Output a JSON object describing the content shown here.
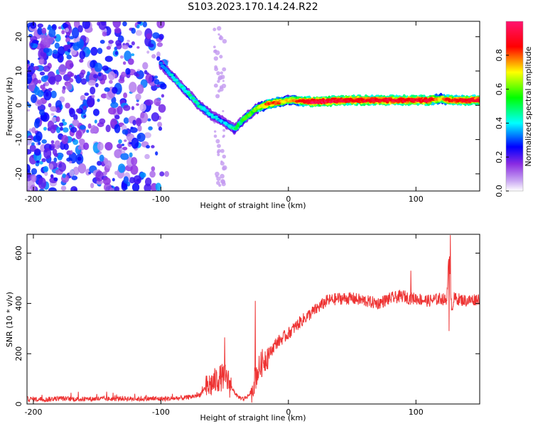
{
  "figure": {
    "title": "S103.2023.170.14.24.R22"
  },
  "chart_data": [
    {
      "type": "heatmap",
      "xlabel": "Height of straight line (km)",
      "ylabel": "Frequency (Hz)",
      "xlim": [
        -205,
        150
      ],
      "ylim": [
        -25,
        24.5
      ],
      "xticks": [
        -200,
        -100,
        0,
        100
      ],
      "yticks": [
        -20,
        -10,
        0,
        10,
        20
      ],
      "colorbar": {
        "label": "Normalized spectral amplitude",
        "range": [
          0,
          1
        ],
        "ticks": [
          0.0,
          0.2,
          0.4,
          0.6,
          0.8
        ],
        "colormap": [
          "#ffffff",
          "#8a2be2",
          "#0000ff",
          "#00ffff",
          "#00ff00",
          "#ffff00",
          "#ff0000",
          "#ff1493"
        ]
      },
      "ridge": {
        "x": [
          -100,
          -90,
          -80,
          -70,
          -60,
          -50,
          -42,
          -35,
          -25,
          -15,
          -5,
          0,
          20,
          50,
          80,
          110,
          120,
          125,
          150
        ],
        "y": [
          12,
          8,
          4,
          0,
          -3,
          -5,
          -7,
          -4,
          -1,
          0.5,
          1,
          1.5,
          1,
          1.5,
          1.5,
          1.5,
          2,
          1.5,
          1.5
        ],
        "amplitude": [
          0.35,
          0.4,
          0.45,
          0.45,
          0.4,
          0.35,
          0.45,
          0.55,
          0.6,
          0.85,
          0.75,
          0.7,
          0.95,
          0.9,
          0.9,
          0.9,
          0.7,
          0.85,
          0.9
        ]
      },
      "noise_region": {
        "x": [
          -205,
          -95
        ],
        "amplitude_max": 0.3
      },
      "grid": false
    },
    {
      "type": "line",
      "xlabel": "Height of straight line (km)",
      "ylabel": "SNR (10 * v/v)",
      "xlim": [
        -205,
        150
      ],
      "ylim": [
        0,
        675
      ],
      "xticks": [
        -200,
        -100,
        0,
        100
      ],
      "yticks": [
        0,
        200,
        400,
        600
      ],
      "color": "#ee3333",
      "series": [
        {
          "x": [
            -205,
            -190,
            -180,
            -170,
            -160,
            -150,
            -140,
            -130,
            -120,
            -110,
            -100,
            -90,
            -80,
            -70,
            -65,
            -60,
            -55,
            -50,
            -45,
            -40,
            -35,
            -30,
            -25,
            -22,
            -20,
            -15,
            -10,
            -5,
            0,
            10,
            20,
            30,
            40,
            50,
            60,
            70,
            80,
            90,
            95,
            100,
            110,
            120,
            124,
            126,
            128,
            130,
            140,
            150
          ],
          "y": [
            20,
            18,
            22,
            20,
            19,
            21,
            20,
            22,
            20,
            21,
            20,
            22,
            25,
            35,
            60,
            80,
            100,
            110,
            70,
            30,
            20,
            40,
            120,
            150,
            170,
            200,
            240,
            260,
            280,
            330,
            370,
            410,
            420,
            420,
            410,
            400,
            420,
            430,
            420,
            420,
            410,
            420,
            410,
            600,
            380,
            420,
            410,
            420
          ]
        }
      ],
      "spikes": [
        {
          "x": -26,
          "y": 410
        },
        {
          "x": -50,
          "y": 265
        },
        {
          "x": 96,
          "y": 530
        },
        {
          "x": 127,
          "y": 672
        },
        {
          "x": 126,
          "y": 290
        }
      ],
      "grid": false
    }
  ]
}
